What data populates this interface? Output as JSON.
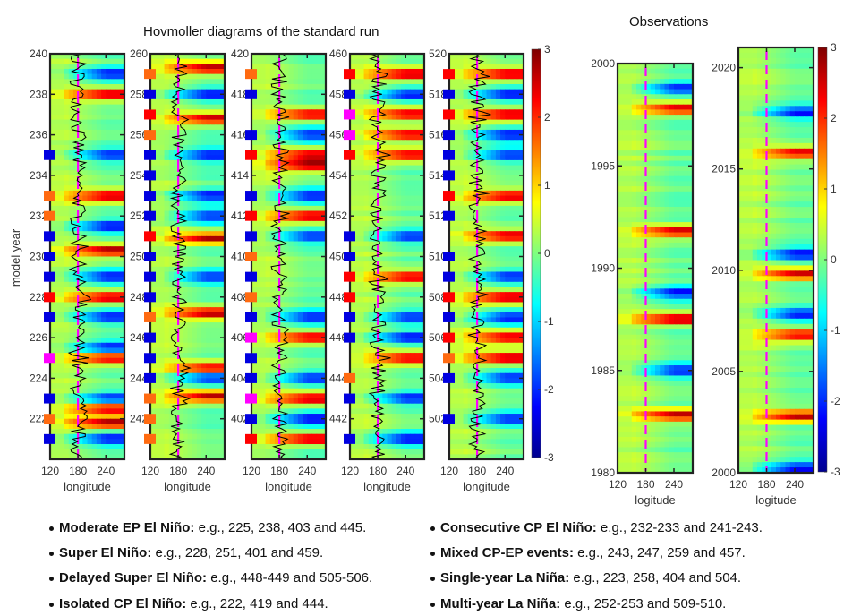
{
  "chart_data": {
    "type": "heatmap",
    "title": "Hovmoller diagrams of the standard run",
    "subtitle_observations": "Observations",
    "colorbar": {
      "range": [
        -3,
        3
      ],
      "ticks": [
        "3",
        "2",
        "1",
        "0",
        "-1",
        "-2",
        "-3"
      ],
      "colormap": "jet"
    },
    "xlabel_model": "longitude",
    "xlabel_obs": "logitude",
    "ylabel_model": "model year",
    "xticks": [
      "120",
      "180",
      "240"
    ],
    "xrange": [
      120,
      280
    ],
    "dashed_reference_longitude": 180,
    "model_panels": [
      {
        "ylim": [
          220,
          240
        ],
        "yticks": [
          "240",
          "238",
          "236",
          "234",
          "232",
          "230",
          "228",
          "226",
          "224",
          "222"
        ],
        "markers": [
          {
            "year": 239.5,
            "type": "none"
          },
          {
            "year": 235,
            "type": "la-nina"
          },
          {
            "year": 233,
            "type": "cp"
          },
          {
            "year": 232,
            "type": "cp"
          },
          {
            "year": 231,
            "type": "la-nina"
          },
          {
            "year": 230,
            "type": "la-nina"
          },
          {
            "year": 229,
            "type": "la-nina"
          },
          {
            "year": 228,
            "type": "super"
          },
          {
            "year": 227,
            "type": "la-nina"
          },
          {
            "year": 225,
            "type": "ep"
          },
          {
            "year": 223,
            "type": "la-nina"
          },
          {
            "year": 222,
            "type": "cp"
          },
          {
            "year": 221,
            "type": "la-nina"
          }
        ],
        "warm_years": [
          238,
          233,
          230.3,
          228,
          225,
          222.5,
          221.8
        ],
        "cold_years": [
          239,
          235,
          231.5,
          229,
          227,
          225.5,
          223,
          221
        ]
      },
      {
        "ylim": [
          240,
          260
        ],
        "yticks": [
          "260",
          "258",
          "256",
          "254",
          "252",
          "250",
          "248",
          "246",
          "244",
          "242"
        ],
        "markers": [
          {
            "year": 259,
            "type": "cp"
          },
          {
            "year": 258,
            "type": "la-nina"
          },
          {
            "year": 257,
            "type": "super"
          },
          {
            "year": 256,
            "type": "cp"
          },
          {
            "year": 255,
            "type": "la-nina"
          },
          {
            "year": 254,
            "type": "la-nina"
          },
          {
            "year": 253,
            "type": "la-nina"
          },
          {
            "year": 252,
            "type": "la-nina"
          },
          {
            "year": 251,
            "type": "super"
          },
          {
            "year": 250,
            "type": "la-nina"
          },
          {
            "year": 249,
            "type": "la-nina"
          },
          {
            "year": 248,
            "type": "la-nina"
          },
          {
            "year": 247,
            "type": "cp"
          },
          {
            "year": 246,
            "type": "la-nina"
          },
          {
            "year": 245,
            "type": "la-nina"
          },
          {
            "year": 244,
            "type": "la-nina"
          },
          {
            "year": 243,
            "type": "cp"
          },
          {
            "year": 242,
            "type": "cp"
          },
          {
            "year": 241,
            "type": "cp"
          }
        ],
        "warm_years": [
          259.3,
          256.8,
          250.9,
          247.2,
          244.5,
          243.1
        ],
        "cold_years": [
          258,
          255,
          253,
          252,
          249,
          244
        ]
      },
      {
        "ylim": [
          400,
          420
        ],
        "yticks": [
          "420",
          "418",
          "416",
          "414",
          "412",
          "410",
          "408",
          "406",
          "404",
          "402"
        ],
        "markers": [
          {
            "year": 419,
            "type": "cp"
          },
          {
            "year": 418,
            "type": "la-nina"
          },
          {
            "year": 416,
            "type": "la-nina"
          },
          {
            "year": 415,
            "type": "super"
          },
          {
            "year": 413,
            "type": "la-nina"
          },
          {
            "year": 412,
            "type": "super"
          },
          {
            "year": 411,
            "type": "la-nina"
          },
          {
            "year": 410,
            "type": "cp"
          },
          {
            "year": 409,
            "type": "la-nina"
          },
          {
            "year": 408,
            "type": "cp"
          },
          {
            "year": 407,
            "type": "la-nina"
          },
          {
            "year": 406,
            "type": "ep"
          },
          {
            "year": 405,
            "type": "la-nina"
          },
          {
            "year": 404,
            "type": "la-nina"
          },
          {
            "year": 403,
            "type": "ep"
          },
          {
            "year": 402,
            "type": "la-nina"
          },
          {
            "year": 401,
            "type": "super"
          }
        ],
        "warm_years": [
          417,
          415,
          414.5,
          412,
          406,
          403,
          401
        ],
        "cold_years": [
          416,
          413,
          411,
          407,
          404,
          402
        ]
      },
      {
        "ylim": [
          440,
          460
        ],
        "yticks": [
          "460",
          "458",
          "456",
          "454",
          "452",
          "450",
          "448",
          "446",
          "444",
          "442"
        ],
        "markers": [
          {
            "year": 459,
            "type": "super"
          },
          {
            "year": 458,
            "type": "la-nina"
          },
          {
            "year": 457,
            "type": "ep"
          },
          {
            "year": 456,
            "type": "ep"
          },
          {
            "year": 455,
            "type": "super"
          },
          {
            "year": 451,
            "type": "la-nina"
          },
          {
            "year": 450,
            "type": "la-nina"
          },
          {
            "year": 449,
            "type": "super"
          },
          {
            "year": 448,
            "type": "super"
          },
          {
            "year": 447,
            "type": "la-nina"
          },
          {
            "year": 446,
            "type": "la-nina"
          },
          {
            "year": 444,
            "type": "cp"
          },
          {
            "year": 443,
            "type": "la-nina"
          },
          {
            "year": 441,
            "type": "la-nina"
          }
        ],
        "warm_years": [
          459,
          457,
          456,
          455,
          449,
          445
        ],
        "cold_years": [
          458,
          451,
          447,
          446,
          443,
          441
        ]
      },
      {
        "ylim": [
          500,
          520
        ],
        "yticks": [
          "520",
          "518",
          "516",
          "514",
          "512",
          "510",
          "508",
          "506",
          "504",
          "502"
        ],
        "markers": [
          {
            "year": 519,
            "type": "super"
          },
          {
            "year": 518,
            "type": "la-nina"
          },
          {
            "year": 517,
            "type": "super"
          },
          {
            "year": 516,
            "type": "la-nina"
          },
          {
            "year": 515,
            "type": "la-nina"
          },
          {
            "year": 514,
            "type": "la-nina"
          },
          {
            "year": 513,
            "type": "super"
          },
          {
            "year": 512,
            "type": "la-nina"
          },
          {
            "year": 510,
            "type": "la-nina"
          },
          {
            "year": 509,
            "type": "la-nina"
          },
          {
            "year": 508,
            "type": "super"
          },
          {
            "year": 507,
            "type": "la-nina"
          },
          {
            "year": 506,
            "type": "super"
          },
          {
            "year": 505,
            "type": "cp"
          },
          {
            "year": 504,
            "type": "la-nina"
          },
          {
            "year": 502,
            "type": "la-nina"
          }
        ],
        "warm_years": [
          519,
          517,
          513,
          511,
          508,
          506,
          505
        ],
        "cold_years": [
          518,
          516,
          515,
          509,
          507,
          504,
          502
        ]
      }
    ],
    "obs_panels": [
      {
        "ylim": [
          1980,
          2000
        ],
        "yticks": [
          "2000",
          "1995",
          "1990",
          "1985",
          "1980"
        ],
        "warm_years": [
          1997.8,
          1987.5,
          1982.8,
          1991.8
        ],
        "cold_years": [
          1998.8,
          1988.8,
          1985
        ]
      },
      {
        "ylim": [
          2000,
          2021
        ],
        "yticks": [
          "2020",
          "2015",
          "2010",
          "2005",
          "2000"
        ],
        "warm_years": [
          2015.8,
          2009.8,
          2002.8,
          2006.8
        ],
        "cold_years": [
          2010.8,
          2007.8,
          2017.8,
          2000.2
        ]
      }
    ],
    "marker_colors": {
      "la-nina": "#0000e0",
      "cp": "#ff6a10",
      "super": "#ff0000",
      "ep": "#ff00ff"
    },
    "series_colors": {
      "dashed_line": "#ff00ff",
      "index_curve": "#000000"
    }
  },
  "legend": {
    "left": [
      {
        "label": "Moderate EP El Niño:",
        "text": " e.g., 225, 238, 403 and 445."
      },
      {
        "label": "Super El Niño:",
        "text": " e.g., 228, 251, 401 and 459."
      },
      {
        "label": "Delayed Super El Niño:",
        "text": " e.g., 448-449 and 505-506."
      },
      {
        "label": "Isolated CP El Niño:",
        "text": " e.g., 222, 419 and 444."
      }
    ],
    "right": [
      {
        "label": "Consecutive CP El Niño:",
        "text": " e.g., 232-233 and 241-243."
      },
      {
        "label": "Mixed CP-EP events:",
        "text": " e.g., 243, 247, 259 and 457."
      },
      {
        "label": "Single-year La Niña:",
        "text": " e.g., 223, 258, 404 and 504."
      },
      {
        "label": "Multi-year La Niña:",
        "text": " e.g., 252-253 and 509-510."
      }
    ]
  }
}
